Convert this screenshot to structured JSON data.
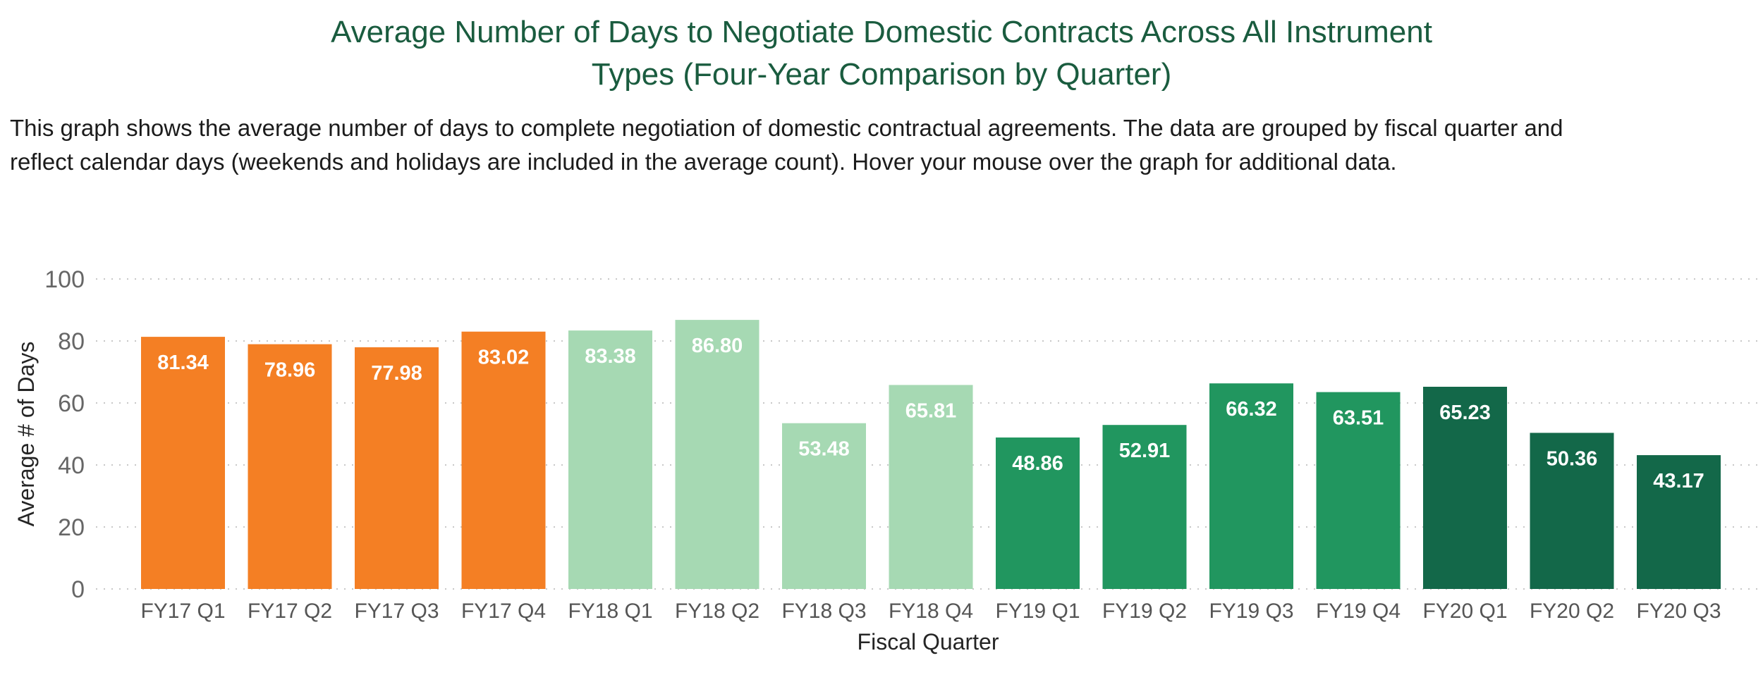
{
  "title_lines": [
    "Average Number of Days to Negotiate Domestic Contracts Across All Instrument",
    "Types (Four-Year Comparison by Quarter)"
  ],
  "description_lines": [
    "This graph shows the average number of days to complete negotiation of domestic contractual agreements. The data are grouped by fiscal quarter and",
    "reflect calendar days (weekends and holidays are included in the average count).  Hover your mouse over the graph for additional data."
  ],
  "colors": {
    "FY17": "#f47f24",
    "FY18": "#a6d9b3",
    "FY19": "#21965f",
    "FY20": "#136849",
    "title": "#1a5c3f"
  },
  "chart_data": {
    "type": "bar",
    "title": "Average Number of Days to Negotiate Domestic Contracts Across All Instrument Types (Four-Year Comparison by Quarter)",
    "xlabel": "Fiscal Quarter",
    "ylabel": "Average # of Days",
    "ylim": [
      0,
      100
    ],
    "yticks": [
      0,
      20,
      40,
      60,
      80,
      100
    ],
    "grid": true,
    "legend": "none",
    "categories": [
      "FY17 Q1",
      "FY17 Q2",
      "FY17 Q3",
      "FY17 Q4",
      "FY18 Q1",
      "FY18 Q2",
      "FY18 Q3",
      "FY18 Q4",
      "FY19 Q1",
      "FY19 Q2",
      "FY19 Q3",
      "FY19 Q4",
      "FY20 Q1",
      "FY20 Q2",
      "FY20 Q3"
    ],
    "values": [
      81.34,
      78.96,
      77.98,
      83.02,
      83.38,
      86.8,
      53.48,
      65.81,
      48.86,
      52.91,
      66.32,
      63.51,
      65.23,
      50.36,
      43.17
    ],
    "value_labels": [
      "81.34",
      "78.96",
      "77.98",
      "83.02",
      "83.38",
      "86.80",
      "53.48",
      "65.81",
      "48.86",
      "52.91",
      "66.32",
      "63.51",
      "65.23",
      "50.36",
      "43.17"
    ],
    "color_group": [
      "FY17",
      "FY17",
      "FY17",
      "FY17",
      "FY18",
      "FY18",
      "FY18",
      "FY18",
      "FY19",
      "FY19",
      "FY19",
      "FY19",
      "FY20",
      "FY20",
      "FY20"
    ]
  }
}
